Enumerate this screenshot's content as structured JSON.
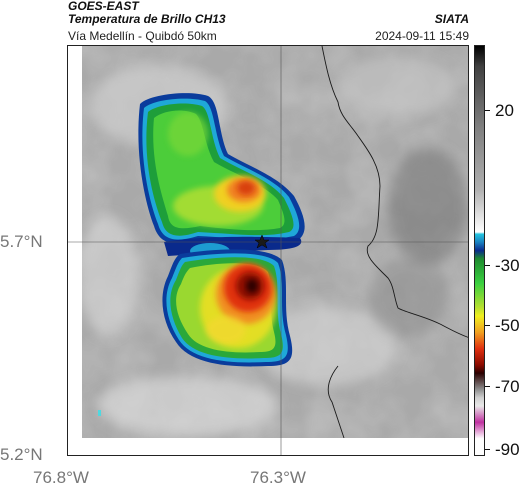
{
  "header": {
    "title1": "GOES-EAST",
    "title2": "Temperatura de Brillo CH13",
    "subtitle": "Vía Medellín - Quibdó 50km",
    "brand": "SIATA",
    "timestamp": "2024-09-11 15:49"
  },
  "axes": {
    "y_ticks": [
      "5.7°N",
      "5.2°N"
    ],
    "x_ticks": [
      "76.8°W",
      "76.3°W"
    ]
  },
  "colorbar": {
    "ticks": [
      "20",
      "-30",
      "-50",
      "-70",
      "-90"
    ],
    "colors": [
      "#000000",
      "#ffffff",
      "#22c4e0",
      "#0a2a8c",
      "#2db82d",
      "#f0f020",
      "#e03010",
      "#2a0000",
      "#c030a0"
    ]
  },
  "marker": {
    "icon": "star-icon"
  }
}
